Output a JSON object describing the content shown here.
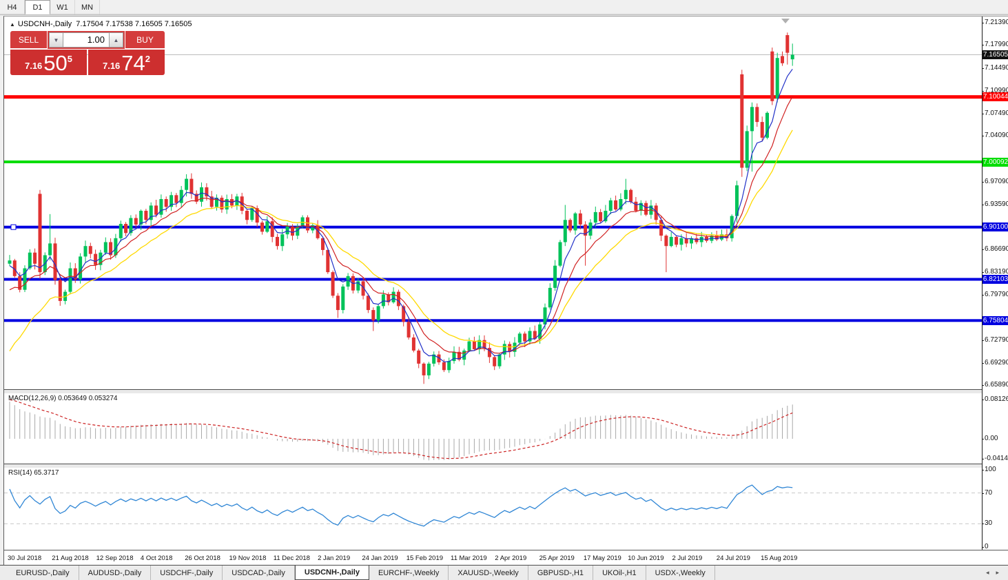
{
  "toolbar": {
    "timeframes": [
      {
        "label": "H4",
        "active": false
      },
      {
        "label": "D1",
        "active": true
      },
      {
        "label": "W1",
        "active": false
      },
      {
        "label": "MN",
        "active": false
      }
    ]
  },
  "chart": {
    "symbol": "USDCNH-,Daily",
    "ohlc": "7.17504 7.17538 7.16505 7.16505",
    "collapse_arrow": "▲"
  },
  "trade_panel": {
    "sell_label": "SELL",
    "buy_label": "BUY",
    "volume": "1.00",
    "spin_down": "▼",
    "spin_up": "▲",
    "sell_price": {
      "prefix": "7.16",
      "big": "50",
      "sup": "5"
    },
    "buy_price": {
      "prefix": "7.16",
      "big": "74",
      "sup": "2"
    }
  },
  "price_axis": {
    "ticks": [
      "7.21390",
      "7.17990",
      "7.14490",
      "7.10990",
      "7.07490",
      "7.04090",
      "6.97090",
      "6.93590",
      "6.86690",
      "6.83190",
      "6.79790",
      "6.72790",
      "6.69290",
      "6.65890"
    ],
    "current": {
      "label": "7.16505",
      "value": 7.16505,
      "bg": "#111111"
    }
  },
  "hlines": [
    {
      "label": "7.10044",
      "value": 7.10044,
      "color": "#ff0000",
      "thickness": 5
    },
    {
      "label": "7.00092",
      "value": 7.00092,
      "color": "#00dd00",
      "thickness": 4
    },
    {
      "label": "6.90100",
      "value": 6.901,
      "color": "#0000e0",
      "thickness": 4,
      "marker": true
    },
    {
      "label": "6.82103",
      "value": 6.82103,
      "color": "#0000e0",
      "thickness": 4
    },
    {
      "label": "6.75804",
      "value": 6.75804,
      "color": "#0000e0",
      "thickness": 4
    }
  ],
  "indicators": {
    "macd": {
      "label": "MACD(12,26,9) 0.053649 0.053274",
      "axis": [
        {
          "label": "0.081265",
          "value": 0.081265
        },
        {
          "label": "0.00",
          "value": 0
        },
        {
          "label": "-0.041412",
          "value": -0.041412
        }
      ]
    },
    "rsi": {
      "label": "RSI(14) 65.3717",
      "axis": [
        {
          "label": "100",
          "value": 100
        },
        {
          "label": "70",
          "value": 70
        },
        {
          "label": "30",
          "value": 30
        },
        {
          "label": "0",
          "value": 0
        }
      ],
      "gridlines": [
        70,
        30
      ]
    }
  },
  "date_axis": [
    "30 Jul 2018",
    "21 Aug 2018",
    "12 Sep 2018",
    "4 Oct 2018",
    "26 Oct 2018",
    "19 Nov 2018",
    "11 Dec 2018",
    "2 Jan 2019",
    "24 Jan 2019",
    "15 Feb 2019",
    "11 Mar 2019",
    "2 Apr 2019",
    "25 Apr 2019",
    "17 May 2019",
    "10 Jun 2019",
    "2 Jul 2019",
    "24 Jul 2019",
    "15 Aug 2019"
  ],
  "tabs": {
    "items": [
      "EURUSD-,Daily",
      "AUDUSD-,Daily",
      "USDCHF-,Daily",
      "USDCAD-,Daily",
      "USDCNH-,Daily",
      "EURCHF-,Weekly",
      "XAUUSD-,Weekly",
      "GBPUSD-,H1",
      "UKOil-,H1",
      "USDX-,Weekly"
    ],
    "active_index": 4,
    "left_arrow": "◂",
    "right_arrow": "▸"
  },
  "colors": {
    "bull": "#00c25a",
    "bear": "#e03232",
    "ma_fast": "#2030c8",
    "ma_mid": "#d02020",
    "ma_slow": "#ffd900",
    "rsi_line": "#2f86d5",
    "macd_signal": "#cc2222",
    "macd_bar": "#a8a8a8",
    "current_price_line": "#b8b8b8"
  },
  "chart_data": {
    "type": "candlestick",
    "symbol": "USDCNH",
    "timeframe": "Daily",
    "first_open": 6.845,
    "closes": [
      6.85,
      6.826,
      6.805,
      6.838,
      6.862,
      6.845,
      6.832,
      6.858,
      6.876,
      6.82,
      6.788,
      6.802,
      6.838,
      6.821,
      6.856,
      6.872,
      6.86,
      6.843,
      6.862,
      6.878,
      6.858,
      6.884,
      6.906,
      6.892,
      6.915,
      6.905,
      6.926,
      6.912,
      6.934,
      6.92,
      6.944,
      6.932,
      6.95,
      6.938,
      6.958,
      6.975,
      6.952,
      6.94,
      6.962,
      6.948,
      6.932,
      6.946,
      6.928,
      6.944,
      6.934,
      6.948,
      6.926,
      6.912,
      6.93,
      6.908,
      6.894,
      6.91,
      6.886,
      6.872,
      6.89,
      6.902,
      6.888,
      6.902,
      6.916,
      6.896,
      6.904,
      6.884,
      6.866,
      6.832,
      6.796,
      6.774,
      6.81,
      6.826,
      6.804,
      6.818,
      6.796,
      6.774,
      6.758,
      6.78,
      6.798,
      6.786,
      6.802,
      6.78,
      6.756,
      6.732,
      6.712,
      6.692,
      6.674,
      6.692,
      6.706,
      6.694,
      6.682,
      6.696,
      6.71,
      6.698,
      6.712,
      6.726,
      6.714,
      6.728,
      6.716,
      6.702,
      6.688,
      6.706,
      6.722,
      6.71,
      6.724,
      6.738,
      6.726,
      6.742,
      6.73,
      6.752,
      6.778,
      6.808,
      6.842,
      6.878,
      6.912,
      6.896,
      6.922,
      6.905,
      6.888,
      6.908,
      6.924,
      6.91,
      6.926,
      6.942,
      6.928,
      6.944,
      6.958,
      6.94,
      6.926,
      6.938,
      6.92,
      6.934,
      6.912,
      6.888,
      6.872,
      6.886,
      6.874,
      6.884,
      6.876,
      6.884,
      6.878,
      6.886,
      6.88,
      6.888,
      6.882,
      6.89,
      6.884,
      6.918,
      6.965,
      6.992,
      7.048,
      7.085,
      7.062,
      7.038,
      7.076,
      7.094,
      7.16,
      7.152,
      7.168,
      7.165
    ],
    "overrides": {
      "6": [
        6.952,
        6.958,
        6.822
      ],
      "8": [
        6.858,
        6.921,
        6.85
      ],
      "35": [
        6.958,
        6.982,
        6.948
      ],
      "65": [
        6.796,
        6.8,
        6.762
      ],
      "72": [
        6.774,
        6.778,
        6.742
      ],
      "82": [
        6.692,
        6.694,
        6.661
      ],
      "110": [
        6.878,
        6.935,
        6.872
      ],
      "114": [
        6.905,
        6.91,
        6.842
      ],
      "122": [
        6.944,
        6.975,
        6.936
      ],
      "130": [
        6.888,
        6.89,
        6.832
      ],
      "144": [
        6.918,
        6.972,
        6.908
      ],
      "145": [
        7.135,
        7.142,
        6.978
      ],
      "147": [
        7.048,
        7.092,
        6.986
      ],
      "151": [
        7.17,
        7.176,
        7.088
      ],
      "152": [
        7.098,
        7.168,
        7.092
      ],
      "153": [
        7.163,
        7.17,
        7.148
      ],
      "154": [
        7.195,
        7.199,
        7.15
      ],
      "155": [
        7.158,
        7.182,
        7.148
      ]
    },
    "ma_periods": {
      "fast": 5,
      "mid": 10,
      "slow": 18
    },
    "macd_params": [
      12,
      26,
      9
    ],
    "rsi_period": 14
  }
}
